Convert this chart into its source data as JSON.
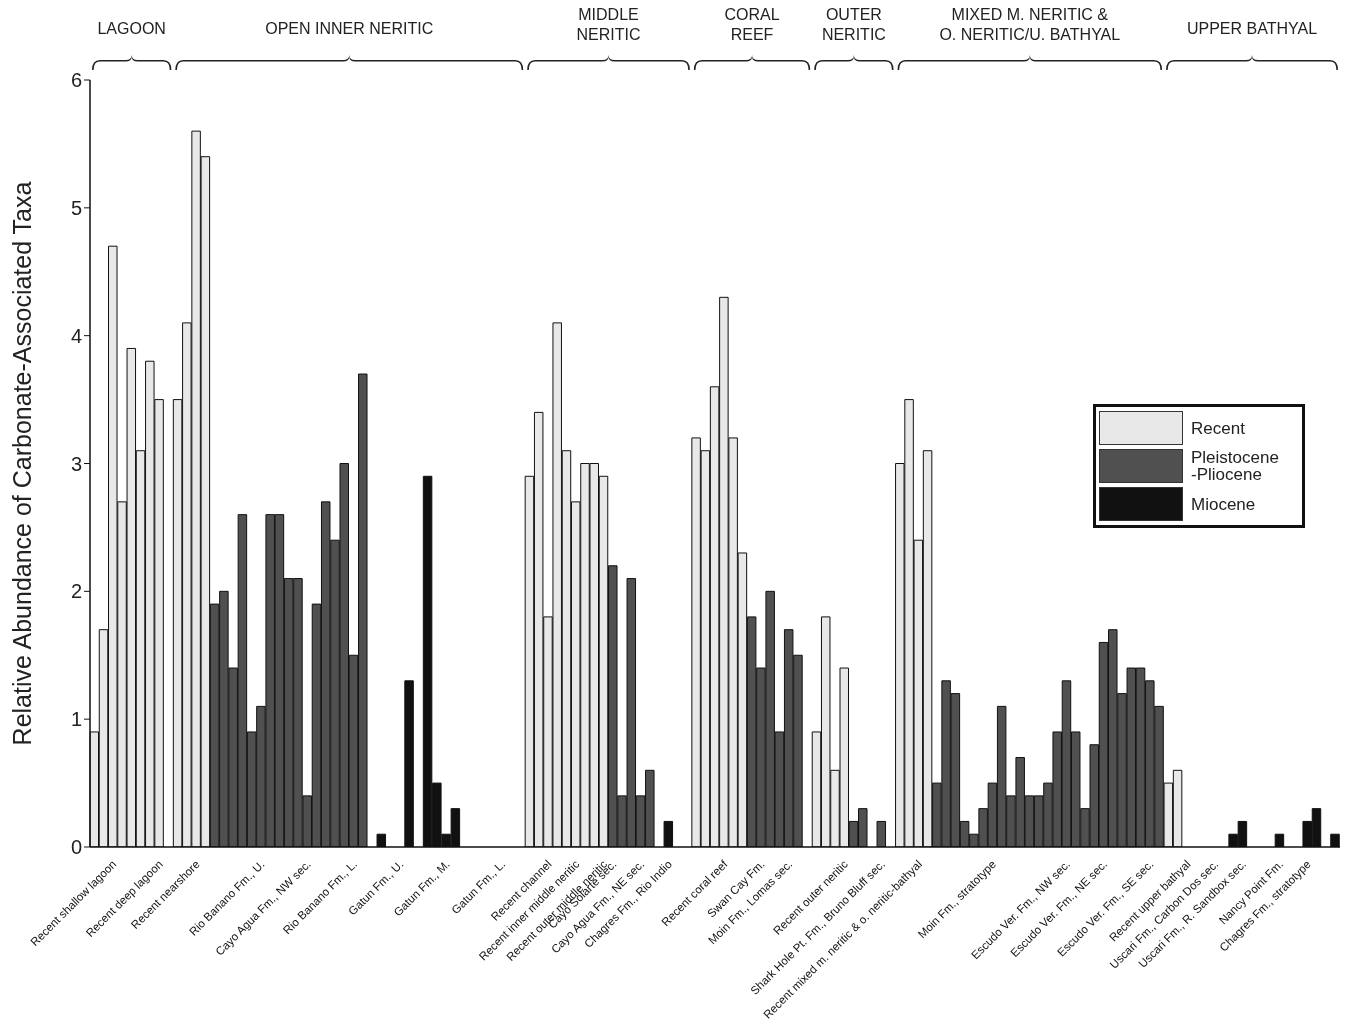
{
  "chart_data": {
    "type": "bar",
    "ylabel": "Relative Abundance of Carbonate-Associated Taxa",
    "ylim": [
      0,
      6
    ],
    "yticks": [
      0,
      1,
      2,
      3,
      4,
      5,
      6
    ],
    "grid": false,
    "legend": "right",
    "categories": [
      null,
      null,
      "Recent shallow lagoon",
      null,
      null,
      null,
      null,
      "Recent deep lagoon",
      null,
      null,
      null,
      "Recent nearshore",
      null,
      null,
      null,
      null,
      null,
      null,
      "Rio Banano Fm., U.",
      null,
      null,
      null,
      null,
      "Cayo Agua Fm., NW sec.",
      null,
      null,
      null,
      null,
      "Rio Banano Fm., L.",
      null,
      null,
      null,
      null,
      "Gatun Fm., U.",
      null,
      null,
      null,
      null,
      "Gatun Fm., M.",
      null,
      null,
      null,
      null,
      null,
      "Gatun Fm., L.",
      null,
      null,
      null,
      null,
      "Recent channel",
      null,
      null,
      "Recent inner middle neritic",
      null,
      null,
      "Recent outer middle neritic",
      "Cayo Solarte sec.",
      null,
      null,
      "Cayo Agua Fm., NE sec.",
      null,
      null,
      "Chagres Fm., Rio Indio",
      null,
      null,
      null,
      null,
      null,
      "Recent coral reef",
      null,
      null,
      null,
      "Swan Cay Fm.",
      null,
      null,
      "Moin Fm., Lomas sec.",
      null,
      null,
      null,
      null,
      null,
      "Recent outer neritic",
      null,
      null,
      null,
      "Shark Hole Pt. Fm., Bruno Bluff sec.",
      null,
      null,
      null,
      "Recent mixed m. neritic & o. neritic-bathyal",
      null,
      null,
      null,
      null,
      null,
      null,
      null,
      "Moin Fm., stratotype",
      null,
      null,
      null,
      null,
      null,
      null,
      null,
      "Escudo Ver. Fm., NW sec.",
      null,
      null,
      null,
      "Escudo Ver. Fm., NE sec.",
      null,
      null,
      null,
      null,
      "Escudo Ver. Fm., SE sec.",
      null,
      null,
      null,
      "Recent upper bathyal",
      null,
      null,
      "Uscari Fm., Carbon Dos sec.",
      null,
      null,
      "Uscari Fm., R. Sandbox sec.",
      null,
      null,
      null,
      "Nancy Point Fm.",
      null,
      null,
      "Chagres Fm., stratotype",
      null,
      null,
      null
    ],
    "series": [
      {
        "name": "Recent",
        "color": "#e8e8e8",
        "values": [
          0.9,
          1.7,
          4.7,
          2.7,
          3.9,
          3.1,
          3.8,
          3.5,
          null,
          3.5,
          4.1,
          5.6,
          5.4,
          null,
          null,
          null,
          null,
          null,
          null,
          null,
          null,
          null,
          null,
          null,
          null,
          null,
          null,
          null,
          null,
          null,
          null,
          null,
          null,
          null,
          null,
          null,
          null,
          null,
          null,
          null,
          null,
          null,
          null,
          null,
          null,
          null,
          null,
          2.9,
          3.4,
          1.8,
          4.1,
          3.1,
          2.7,
          3.0,
          3.0,
          2.9,
          null,
          null,
          null,
          null,
          null,
          null,
          null,
          null,
          null,
          3.2,
          3.1,
          3.6,
          4.3,
          3.2,
          2.3,
          null,
          null,
          null,
          null,
          null,
          null,
          null,
          0.9,
          1.8,
          0.6,
          1.4,
          null,
          null,
          null,
          null,
          null,
          3.0,
          3.5,
          2.4,
          3.1,
          null,
          null,
          null,
          null,
          null,
          null,
          null,
          null,
          null,
          null,
          null,
          null,
          null,
          null,
          null,
          null,
          null,
          null,
          null,
          null,
          null,
          null,
          null,
          null,
          null,
          0.5,
          0.6,
          null,
          null,
          null,
          null,
          null,
          null,
          null,
          null,
          null,
          null,
          null,
          null,
          null,
          null,
          null,
          null,
          null
        ]
      },
      {
        "name": "Pleistocene\n-Pliocene",
        "color": "#505050",
        "values": [
          null,
          null,
          null,
          null,
          null,
          null,
          null,
          null,
          null,
          null,
          null,
          null,
          null,
          1.9,
          2.0,
          1.4,
          2.6,
          0.9,
          1.1,
          2.6,
          2.6,
          2.1,
          2.1,
          0.4,
          1.9,
          2.7,
          2.4,
          3.0,
          1.5,
          3.7,
          null,
          null,
          null,
          null,
          null,
          null,
          null,
          null,
          null,
          null,
          null,
          null,
          null,
          null,
          null,
          null,
          null,
          null,
          null,
          null,
          null,
          null,
          null,
          null,
          null,
          null,
          2.2,
          0.4,
          2.1,
          0.4,
          0.6,
          null,
          null,
          null,
          null,
          null,
          null,
          null,
          null,
          null,
          null,
          1.8,
          1.4,
          2.0,
          0.9,
          1.7,
          1.5,
          null,
          null,
          null,
          null,
          null,
          0.2,
          0.3,
          null,
          0.2,
          null,
          null,
          null,
          null,
          null,
          0.5,
          1.3,
          1.2,
          0.2,
          0.1,
          0.3,
          0.5,
          1.1,
          0.4,
          0.7,
          0.4,
          0.4,
          0.5,
          0.9,
          1.3,
          0.9,
          0.3,
          0.8,
          1.6,
          1.7,
          1.2,
          1.4,
          1.4,
          1.3,
          1.1,
          null,
          null,
          null,
          null,
          null,
          null,
          null,
          null,
          null,
          null,
          null,
          null,
          null,
          null,
          null,
          null,
          null,
          null,
          null
        ]
      },
      {
        "name": "Miocene",
        "color": "#111111",
        "values": [
          null,
          null,
          null,
          null,
          null,
          null,
          null,
          null,
          null,
          null,
          null,
          null,
          null,
          null,
          null,
          null,
          null,
          null,
          null,
          null,
          null,
          null,
          null,
          null,
          null,
          null,
          null,
          null,
          null,
          null,
          null,
          0.1,
          null,
          null,
          1.3,
          null,
          2.9,
          0.5,
          0.1,
          0.3,
          null,
          null,
          null,
          null,
          null,
          null,
          null,
          null,
          null,
          null,
          null,
          null,
          null,
          null,
          null,
          null,
          null,
          null,
          null,
          null,
          null,
          null,
          0.2,
          null,
          null,
          null,
          null,
          null,
          null,
          null,
          null,
          null,
          null,
          null,
          null,
          null,
          null,
          null,
          null,
          null,
          null,
          null,
          null,
          null,
          null,
          null,
          null,
          null,
          null,
          null,
          null,
          null,
          null,
          null,
          null,
          null,
          null,
          null,
          null,
          null,
          null,
          null,
          null,
          null,
          null,
          null,
          null,
          null,
          null,
          null,
          null,
          null,
          null,
          null,
          null,
          null,
          null,
          null,
          null,
          null,
          null,
          null,
          null,
          0.1,
          0.2,
          null,
          null,
          null,
          0.1,
          null,
          null,
          0.2,
          0.3,
          null,
          0.1
        ]
      }
    ],
    "annotations": [
      "LAGOON",
      "OPEN INNER NERITIC",
      "MIDDLE\nNERITIC",
      "CORAL\nREEF",
      "OUTER\nNERITIC",
      "MIXED M. NERITIC &\nO. NERITIC/U. BATHYAL",
      "UPPER BATHYAL"
    ]
  }
}
